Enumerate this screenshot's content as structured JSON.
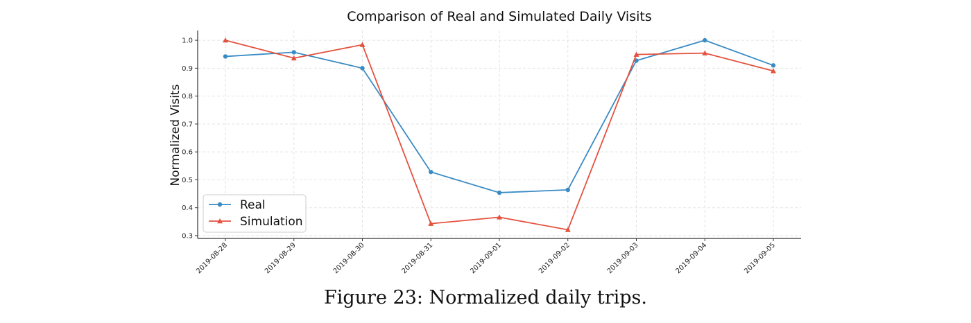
{
  "chart_data": {
    "type": "line",
    "title": "Comparison of Real and Simulated Daily Visits",
    "xlabel": "",
    "ylabel": "Normalized Visits",
    "categories": [
      "2019-08-28",
      "2019-08-29",
      "2019-08-30",
      "2019-08-31",
      "2019-09-01",
      "2019-09-02",
      "2019-09-03",
      "2019-09-04",
      "2019-09-05"
    ],
    "ylim": [
      0.29,
      1.035
    ],
    "yticks": [
      "0.3",
      "0.4",
      "0.5",
      "0.6",
      "0.7",
      "0.8",
      "0.9",
      "1.0"
    ],
    "grid": true,
    "legend": "lower-left",
    "series": [
      {
        "name": "Real",
        "color": "#3a8bc4",
        "marker": "circle",
        "values": [
          0.942,
          0.957,
          0.9,
          0.528,
          0.454,
          0.464,
          0.927,
          1.0,
          0.91
        ]
      },
      {
        "name": "Simulation",
        "color": "#e4513f",
        "marker": "triangle",
        "values": [
          1.0,
          0.936,
          0.984,
          0.343,
          0.366,
          0.321,
          0.949,
          0.954,
          0.89
        ]
      }
    ]
  },
  "caption": "Figure 23: Normalized daily trips."
}
